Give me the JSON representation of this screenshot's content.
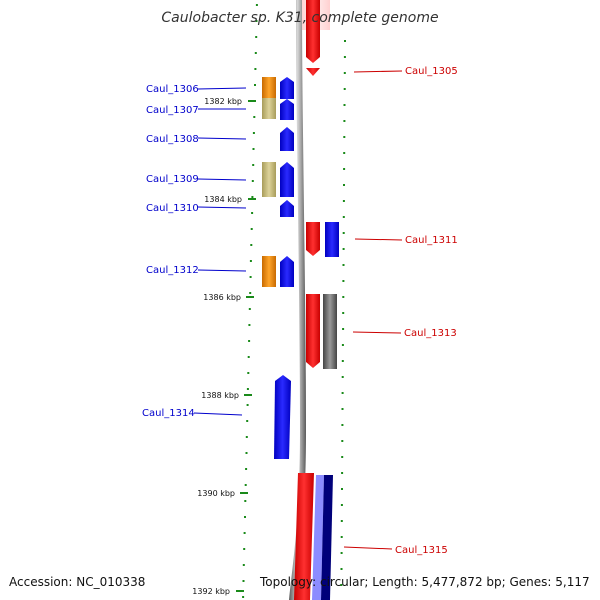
{
  "title": "Caulobacter sp. K31, complete genome",
  "accession": "Accession: NC_010338",
  "topology": "Topology: circular; Length: 5,477,872 bp; Genes: 5,117",
  "colors": {
    "forward": "#ff0000",
    "reverse": "#0000ff",
    "orange": "#f08a00",
    "khaki": "#c8bd78",
    "gray": "#6a6a6a",
    "navy": "#00007a",
    "lavender": "#8c8cff",
    "backbone": "#8a8a8a",
    "tick": "#1a8a1a"
  },
  "genes_left": [
    {
      "id": "caul-1306",
      "label": "Caul_1306"
    },
    {
      "id": "caul-1307",
      "label": "Caul_1307"
    },
    {
      "id": "caul-1308",
      "label": "Caul_1308"
    },
    {
      "id": "caul-1309",
      "label": "Caul_1309"
    },
    {
      "id": "caul-1310",
      "label": "Caul_1310"
    },
    {
      "id": "caul-1312",
      "label": "Caul_1312"
    },
    {
      "id": "caul-1314",
      "label": "Caul_1314"
    }
  ],
  "genes_right": [
    {
      "id": "caul-1305",
      "label": "Caul_1305"
    },
    {
      "id": "caul-1311",
      "label": "Caul_1311"
    },
    {
      "id": "caul-1313",
      "label": "Caul_1313"
    },
    {
      "id": "caul-1315",
      "label": "Caul_1315"
    }
  ],
  "scale_labels": [
    "1382 kbp",
    "1384 kbp",
    "1386 kbp",
    "1388 kbp",
    "1390 kbp",
    "1392 kbp"
  ]
}
